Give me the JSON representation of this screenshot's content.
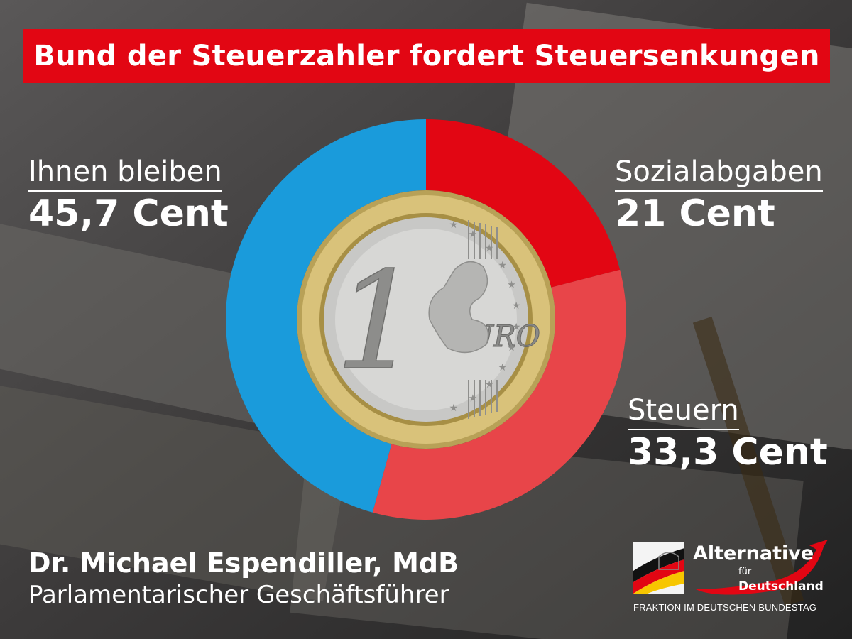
{
  "title": "Bund der Steuerzahler fordert Steuersenkungen",
  "colors": {
    "banner": "#e20613",
    "ihnen_bleiben": "#1a9bdb",
    "sozialabgaben": "#e20613",
    "steuern": "#e84549"
  },
  "chart_data": {
    "type": "pie",
    "unit": "Cent",
    "slices": [
      {
        "name": "Sozialabgaben",
        "value": 21,
        "label": "21 Cent"
      },
      {
        "name": "Steuern",
        "value": 33.3,
        "label": "33,3 Cent"
      },
      {
        "name": "Ihnen bleiben",
        "value": 45.7,
        "label": "45,7 Cent"
      }
    ]
  },
  "labels": {
    "ihnen_bleiben": {
      "name": "Ihnen bleiben",
      "value": "45,7 Cent"
    },
    "sozialabgaben": {
      "name": "Sozialabgaben",
      "value": "21 Cent"
    },
    "steuern": {
      "name": "Steuern",
      "value": "33,3 Cent"
    }
  },
  "coin": {
    "numeral": "1",
    "text": "EURO"
  },
  "author": {
    "name": "Dr. Michael Espendiller, MdB",
    "role": "Parlamentarischer Geschäftsführer"
  },
  "logo": {
    "line1": "Alternative",
    "line2": "für",
    "line3": "Deutschland",
    "subtitle": "FRAKTION IM DEUTSCHEN BUNDESTAG"
  }
}
